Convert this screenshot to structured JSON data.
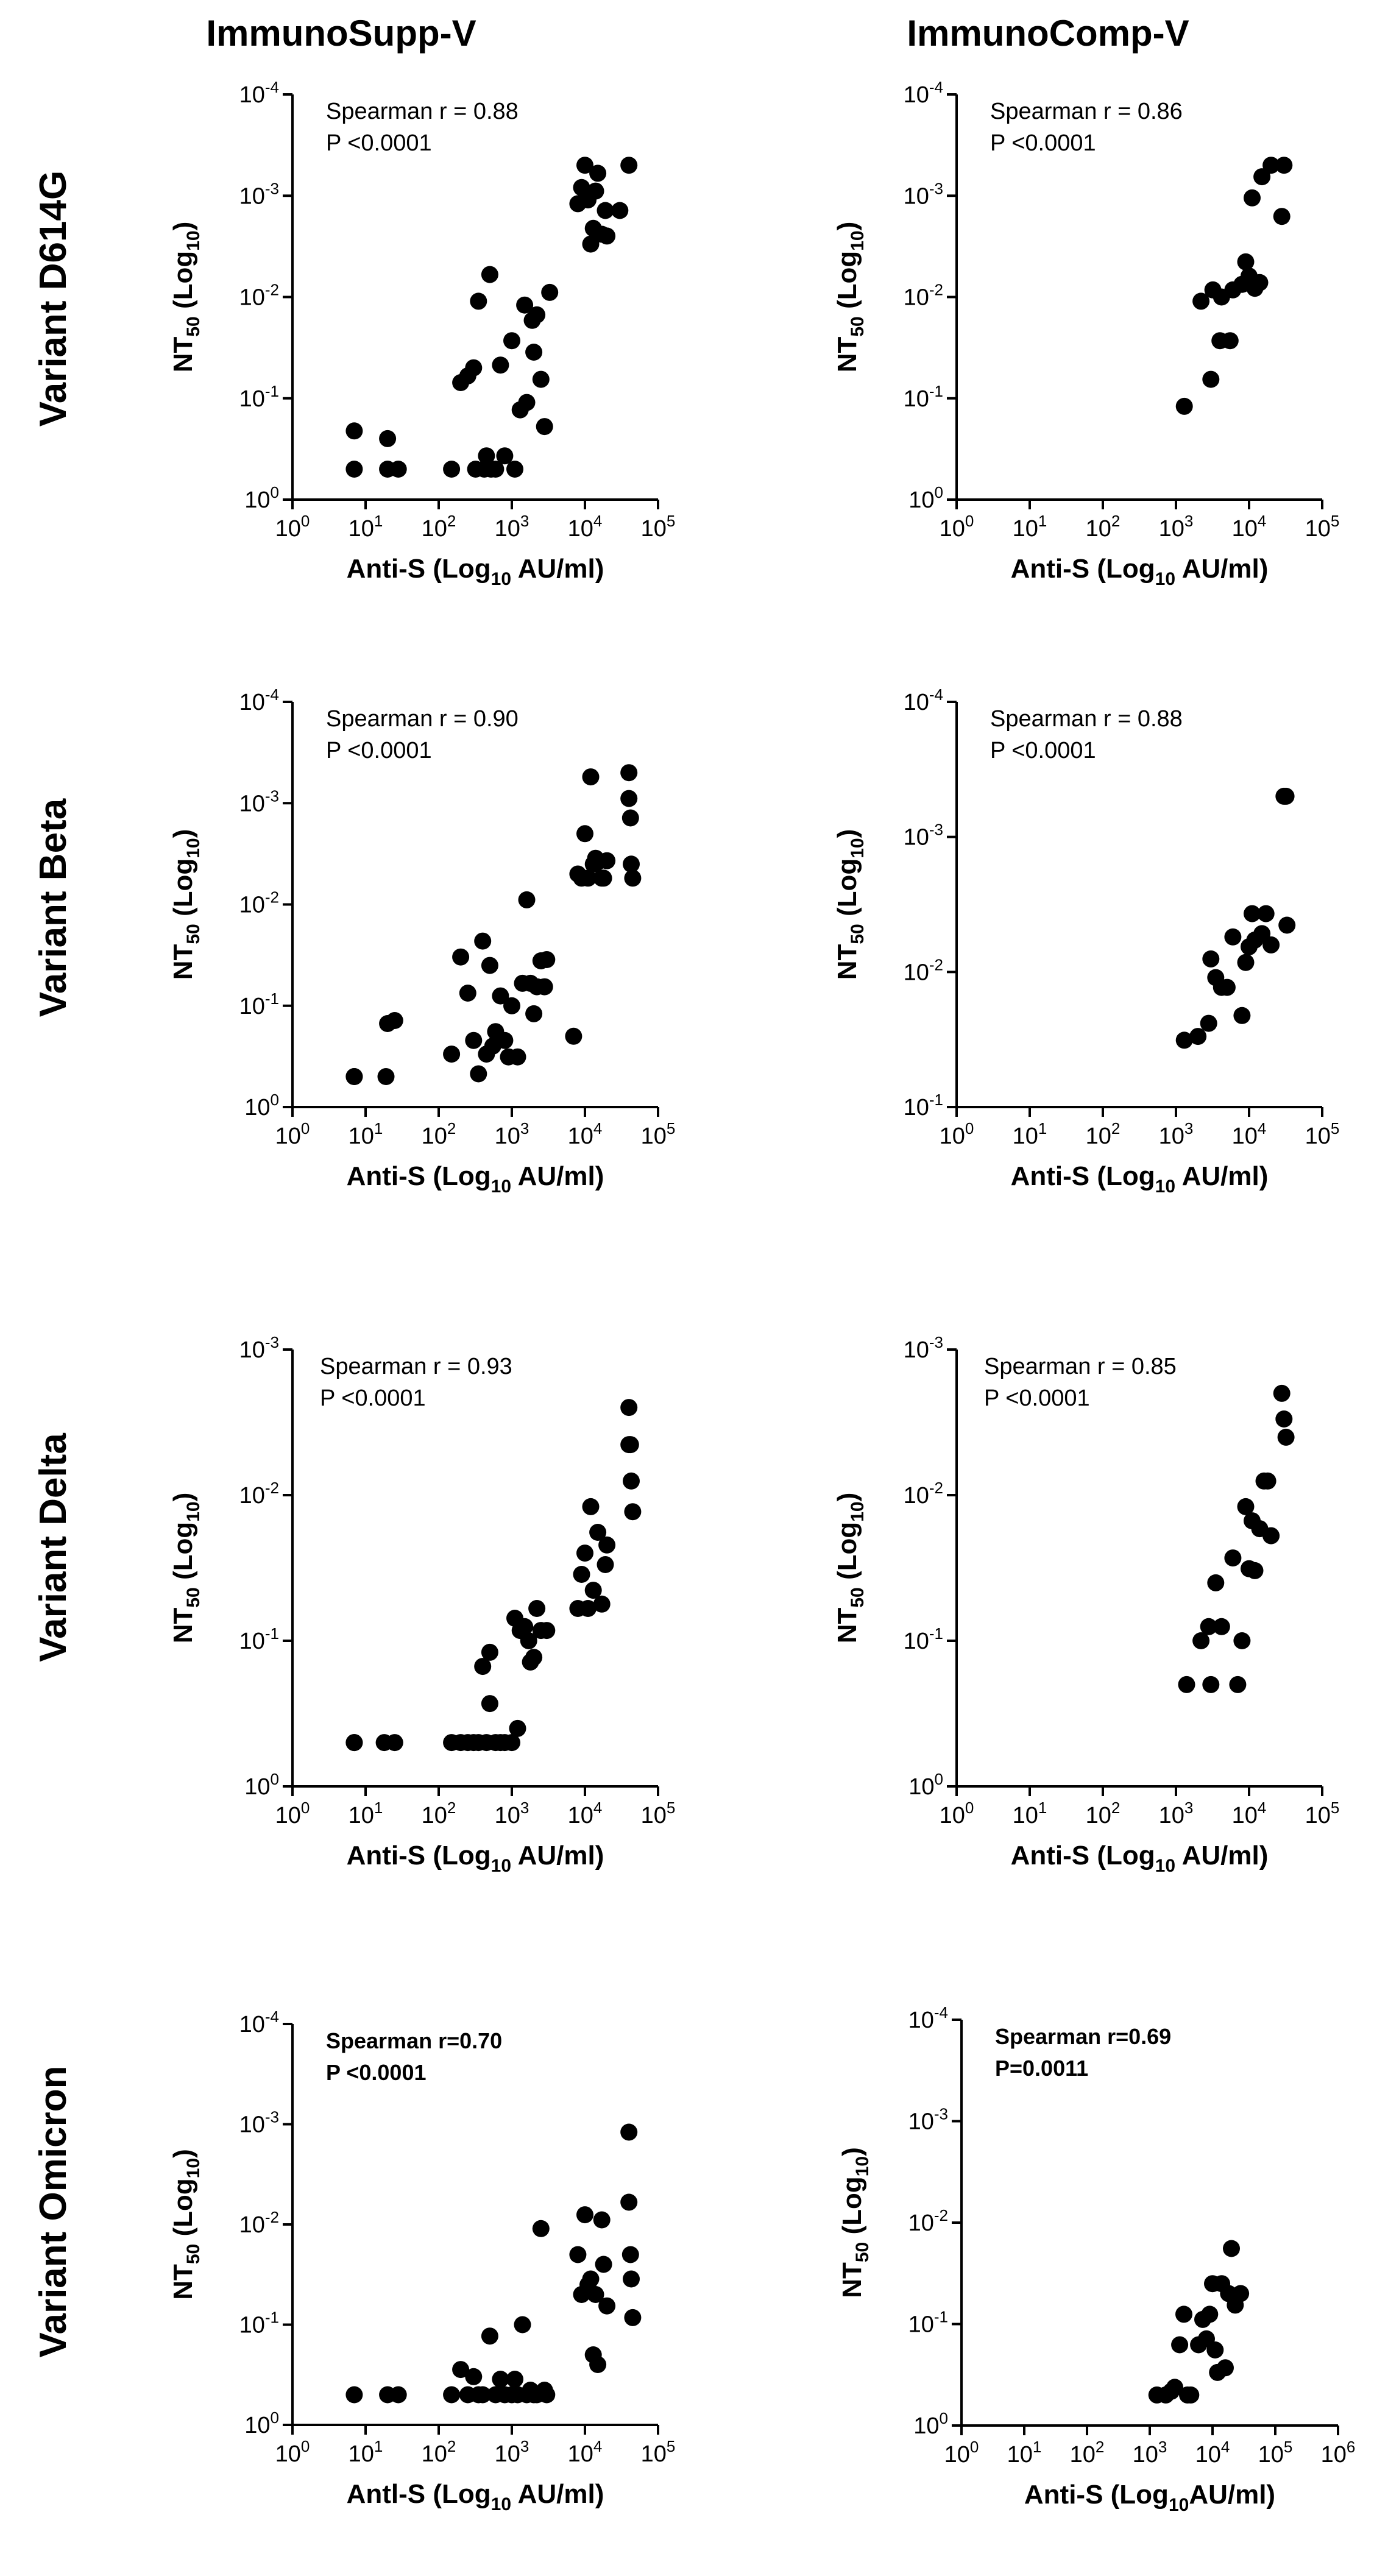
{
  "column_titles": [
    "ImmunoSupp-V",
    "ImmunoComp-V"
  ],
  "row_titles": [
    "Variant D614G",
    "Variant Beta",
    "Variant Delta",
    "Variant Omicron"
  ],
  "chart_data": [
    {
      "type": "scatter",
      "id": "d614g-supp",
      "annotation": [
        "Spearman r = 0.88",
        "P <0.0001"
      ],
      "xlabel": "Anti-S (Log10 AU/ml)",
      "ylabel": "NT50 (Log10)",
      "x_scale": "log",
      "y_scale": "log",
      "y_inverted": true,
      "x_ticks": [
        "10^0",
        "10^1",
        "10^2",
        "10^3",
        "10^4",
        "10^5"
      ],
      "y_ticks": [
        "10^0",
        "10^-1",
        "10^-2",
        "10^-3",
        "10^-4"
      ],
      "points": [
        [
          7,
          0.5
        ],
        [
          7,
          0.21
        ],
        [
          20,
          0.5
        ],
        [
          20,
          0.25
        ],
        [
          28,
          0.5
        ],
        [
          150,
          0.5
        ],
        [
          200,
          0.07
        ],
        [
          250,
          0.06
        ],
        [
          300,
          0.05
        ],
        [
          320,
          0.5
        ],
        [
          350,
          0.011
        ],
        [
          420,
          0.5
        ],
        [
          450,
          0.37
        ],
        [
          500,
          0.006
        ],
        [
          520,
          0.5
        ],
        [
          600,
          0.5
        ],
        [
          700,
          0.047
        ],
        [
          800,
          0.37
        ],
        [
          1000,
          0.027
        ],
        [
          1100,
          0.5
        ],
        [
          1300,
          0.13
        ],
        [
          1500,
          0.012
        ],
        [
          1600,
          0.11
        ],
        [
          1900,
          0.017
        ],
        [
          2000,
          0.035
        ],
        [
          2200,
          0.015
        ],
        [
          2500,
          0.065
        ],
        [
          2800,
          0.19
        ],
        [
          3300,
          0.009
        ],
        [
          8000,
          0.0012
        ],
        [
          9000,
          0.00083
        ],
        [
          10000,
          0.0005
        ],
        [
          11000,
          0.0011
        ],
        [
          12000,
          0.003
        ],
        [
          13000,
          0.0021
        ],
        [
          14000,
          0.0009
        ],
        [
          15000,
          0.0006
        ],
        [
          17000,
          0.0024
        ],
        [
          19000,
          0.0014
        ],
        [
          20000,
          0.0025
        ],
        [
          30000,
          0.0014
        ],
        [
          40000,
          0.0005
        ]
      ]
    },
    {
      "type": "scatter",
      "id": "d614g-comp",
      "annotation": [
        "Spearman r = 0.86",
        "P <0.0001"
      ],
      "xlabel": "Anti-S (Log10 AU/ml)",
      "ylabel": "NT50 (Log10)",
      "x_scale": "log",
      "y_scale": "log",
      "y_inverted": true,
      "x_ticks": [
        "10^0",
        "10^1",
        "10^2",
        "10^3",
        "10^4",
        "10^5"
      ],
      "y_ticks": [
        "10^0",
        "10^-1",
        "10^-2",
        "10^-3",
        "10^-4"
      ],
      "points": [
        [
          1300,
          0.12
        ],
        [
          2200,
          0.011
        ],
        [
          3000,
          0.065
        ],
        [
          3200,
          0.0085
        ],
        [
          4000,
          0.027
        ],
        [
          4200,
          0.01
        ],
        [
          5500,
          0.027
        ],
        [
          6000,
          0.0085
        ],
        [
          8000,
          0.0075
        ],
        [
          9000,
          0.0045
        ],
        [
          10000,
          0.0062
        ],
        [
          11000,
          0.00105
        ],
        [
          12000,
          0.0082
        ],
        [
          14000,
          0.0072
        ],
        [
          15000,
          0.00065
        ],
        [
          20000,
          0.0005
        ],
        [
          28000,
          0.0016
        ],
        [
          30000,
          0.0005
        ]
      ]
    },
    {
      "type": "scatter",
      "id": "beta-supp",
      "annotation": [
        "Spearman r = 0.90",
        "P <0.0001"
      ],
      "xlabel": "Anti-S (Log10 AU/ml)",
      "ylabel": "NT50 (Log10)",
      "x_scale": "log",
      "y_scale": "log",
      "y_inverted": true,
      "x_ticks": [
        "10^0",
        "10^1",
        "10^2",
        "10^3",
        "10^4",
        "10^5"
      ],
      "y_ticks": [
        "10^0",
        "10^-1",
        "10^-2",
        "10^-3",
        "10^-4"
      ],
      "points": [
        [
          7,
          0.5
        ],
        [
          7,
          0.5
        ],
        [
          19,
          0.5
        ],
        [
          20,
          0.15
        ],
        [
          25,
          0.14
        ],
        [
          150,
          0.3
        ],
        [
          200,
          0.033
        ],
        [
          250,
          0.075
        ],
        [
          300,
          0.22
        ],
        [
          350,
          0.47
        ],
        [
          400,
          0.023
        ],
        [
          450,
          0.3
        ],
        [
          500,
          0.04
        ],
        [
          550,
          0.25
        ],
        [
          600,
          0.18
        ],
        [
          700,
          0.08
        ],
        [
          800,
          0.22
        ],
        [
          900,
          0.32
        ],
        [
          1000,
          0.1
        ],
        [
          1200,
          0.32
        ],
        [
          1400,
          0.06
        ],
        [
          1600,
          0.009
        ],
        [
          1800,
          0.06
        ],
        [
          2000,
          0.12
        ],
        [
          2200,
          0.065
        ],
        [
          2500,
          0.036
        ],
        [
          2800,
          0.065
        ],
        [
          3000,
          0.035
        ],
        [
          7000,
          0.2
        ],
        [
          8000,
          0.005
        ],
        [
          9000,
          0.0055
        ],
        [
          10000,
          0.002
        ],
        [
          11000,
          0.0055
        ],
        [
          12000,
          0.00055
        ],
        [
          13000,
          0.004
        ],
        [
          14000,
          0.0035
        ],
        [
          15000,
          0.0038
        ],
        [
          17000,
          0.0055
        ],
        [
          18000,
          0.0055
        ],
        [
          20000,
          0.0037
        ],
        [
          40000,
          0.0005
        ],
        [
          40000,
          0.0009
        ],
        [
          42000,
          0.0014
        ],
        [
          43000,
          0.004
        ],
        [
          45000,
          0.0055
        ]
      ]
    },
    {
      "type": "scatter",
      "id": "beta-comp",
      "annotation": [
        "Spearman r = 0.88",
        "P <0.0001"
      ],
      "xlabel": "Anti-S (Log10 AU/ml)",
      "ylabel": "NT50 (Log10)",
      "x_scale": "log",
      "y_scale": "log",
      "y_inverted": true,
      "x_ticks": [
        "10^0",
        "10^1",
        "10^2",
        "10^3",
        "10^4",
        "10^5"
      ],
      "y_ticks": [
        "10^-1",
        "10^-2",
        "10^-3",
        "10^-4"
      ],
      "points": [
        [
          1300,
          0.032
        ],
        [
          2000,
          0.03
        ],
        [
          2800,
          0.024
        ],
        [
          3000,
          0.008
        ],
        [
          3500,
          0.011
        ],
        [
          4200,
          0.013
        ],
        [
          5000,
          0.013
        ],
        [
          6000,
          0.0055
        ],
        [
          8000,
          0.021
        ],
        [
          9000,
          0.0085
        ],
        [
          10000,
          0.0065
        ],
        [
          11000,
          0.0037
        ],
        [
          12000,
          0.0058
        ],
        [
          15000,
          0.0052
        ],
        [
          17000,
          0.0037
        ],
        [
          20000,
          0.0063
        ],
        [
          30000,
          0.0005
        ],
        [
          32000,
          0.0005
        ],
        [
          33000,
          0.0045
        ]
      ]
    },
    {
      "type": "scatter",
      "id": "delta-supp",
      "annotation": [
        "Spearman r = 0.93",
        "P <0.0001"
      ],
      "xlabel": "Anti-S (Log10 AU/ml)",
      "ylabel": "NT50 (Log10)",
      "x_scale": "log",
      "y_scale": "log",
      "y_inverted": true,
      "x_ticks": [
        "10^0",
        "10^1",
        "10^2",
        "10^3",
        "10^4",
        "10^5"
      ],
      "y_ticks": [
        "10^0",
        "10^-1",
        "10^-2",
        "10^-3"
      ],
      "points": [
        [
          7,
          0.5
        ],
        [
          7,
          0.5
        ],
        [
          18,
          0.5
        ],
        [
          25,
          0.5
        ],
        [
          150,
          0.5
        ],
        [
          200,
          0.5
        ],
        [
          250,
          0.5
        ],
        [
          300,
          0.5
        ],
        [
          350,
          0.5
        ],
        [
          400,
          0.15
        ],
        [
          450,
          0.5
        ],
        [
          500,
          0.12
        ],
        [
          500,
          0.27
        ],
        [
          600,
          0.5
        ],
        [
          700,
          0.5
        ],
        [
          800,
          0.5
        ],
        [
          1000,
          0.5
        ],
        [
          1100,
          0.07
        ],
        [
          1200,
          0.4
        ],
        [
          1300,
          0.085
        ],
        [
          1500,
          0.08
        ],
        [
          1700,
          0.1
        ],
        [
          1800,
          0.14
        ],
        [
          2000,
          0.13
        ],
        [
          2200,
          0.06
        ],
        [
          2500,
          0.085
        ],
        [
          3000,
          0.085
        ],
        [
          8000,
          0.06
        ],
        [
          9000,
          0.035
        ],
        [
          10000,
          0.025
        ],
        [
          11000,
          0.06
        ],
        [
          12000,
          0.012
        ],
        [
          13000,
          0.045
        ],
        [
          15000,
          0.018
        ],
        [
          17000,
          0.056
        ],
        [
          19000,
          0.03
        ],
        [
          20000,
          0.022
        ],
        [
          40000,
          0.0025
        ],
        [
          40000,
          0.0045
        ],
        [
          42000,
          0.0045
        ],
        [
          43000,
          0.008
        ],
        [
          45000,
          0.013
        ]
      ]
    },
    {
      "type": "scatter",
      "id": "delta-comp",
      "annotation": [
        "Spearman r = 0.85",
        "P <0.0001"
      ],
      "xlabel": "Anti-S (Log10 AU/ml)",
      "ylabel": "NT50 (Log10)",
      "x_scale": "log",
      "y_scale": "log",
      "y_inverted": true,
      "x_ticks": [
        "10^0",
        "10^1",
        "10^2",
        "10^3",
        "10^4",
        "10^5"
      ],
      "y_ticks": [
        "10^0",
        "10^-1",
        "10^-2",
        "10^-3"
      ],
      "points": [
        [
          1400,
          0.2
        ],
        [
          2200,
          0.1
        ],
        [
          2800,
          0.08
        ],
        [
          3000,
          0.2
        ],
        [
          3500,
          0.04
        ],
        [
          4200,
          0.08
        ],
        [
          6000,
          0.027
        ],
        [
          7000,
          0.2
        ],
        [
          8000,
          0.1
        ],
        [
          9000,
          0.012
        ],
        [
          10000,
          0.032
        ],
        [
          11000,
          0.015
        ],
        [
          12000,
          0.033
        ],
        [
          14000,
          0.017
        ],
        [
          16000,
          0.008
        ],
        [
          18000,
          0.008
        ],
        [
          20000,
          0.019
        ],
        [
          28000,
          0.002
        ],
        [
          30000,
          0.003
        ],
        [
          32000,
          0.004
        ]
      ]
    },
    {
      "type": "scatter",
      "id": "omicron-supp",
      "annotation": [
        "Spearman r=0.70",
        "P <0.0001"
      ],
      "xlabel": "Antl-S (Log10 AU/ml)",
      "ylabel": "NT50 (Log10)",
      "x_scale": "log",
      "y_scale": "log",
      "y_inverted": true,
      "x_ticks": [
        "10^0",
        "10^1",
        "10^2",
        "10^3",
        "10^4",
        "10^5"
      ],
      "y_ticks": [
        "10^0",
        "10^-1",
        "10^-2",
        "10^-3",
        "10^-4"
      ],
      "points": [
        [
          7,
          0.5
        ],
        [
          20,
          0.5
        ],
        [
          28,
          0.5
        ],
        [
          150,
          0.5
        ],
        [
          200,
          0.28
        ],
        [
          250,
          0.5
        ],
        [
          300,
          0.33
        ],
        [
          350,
          0.5
        ],
        [
          400,
          0.5
        ],
        [
          500,
          0.13
        ],
        [
          600,
          0.5
        ],
        [
          700,
          0.35
        ],
        [
          800,
          0.5
        ],
        [
          1000,
          0.5
        ],
        [
          1100,
          0.35
        ],
        [
          1200,
          0.5
        ],
        [
          1400,
          0.1
        ],
        [
          1600,
          0.5
        ],
        [
          1800,
          0.45
        ],
        [
          2000,
          0.5
        ],
        [
          2200,
          0.5
        ],
        [
          2500,
          0.011
        ],
        [
          2800,
          0.45
        ],
        [
          3000,
          0.5
        ],
        [
          8000,
          0.02
        ],
        [
          9000,
          0.05
        ],
        [
          10000,
          0.008
        ],
        [
          11000,
          0.04
        ],
        [
          12000,
          0.035
        ],
        [
          13000,
          0.2
        ],
        [
          14000,
          0.05
        ],
        [
          15000,
          0.25
        ],
        [
          17000,
          0.009
        ],
        [
          18000,
          0.025
        ],
        [
          20000,
          0.065
        ],
        [
          40000,
          0.0012
        ],
        [
          40000,
          0.006
        ],
        [
          42000,
          0.02
        ],
        [
          43000,
          0.035
        ],
        [
          45000,
          0.085
        ]
      ]
    },
    {
      "type": "scatter",
      "id": "omicron-comp",
      "annotation": [
        "Spearman r=0.69",
        "P=0.0011"
      ],
      "xlabel": "Anti-S (Log10AU/ml)",
      "ylabel": "NT50 (Log10)",
      "x_scale": "log",
      "y_scale": "log",
      "y_inverted": true,
      "x_ticks": [
        "10^0",
        "10^1",
        "10^2",
        "10^3",
        "10^4",
        "10^5",
        "10^6"
      ],
      "y_ticks": [
        "10^0",
        "10^-1",
        "10^-2",
        "10^-3",
        "10^-4"
      ],
      "points": [
        [
          1300,
          0.5
        ],
        [
          1800,
          0.5
        ],
        [
          2200,
          0.46
        ],
        [
          2500,
          0.42
        ],
        [
          3000,
          0.16
        ],
        [
          3500,
          0.08
        ],
        [
          4000,
          0.5
        ],
        [
          4500,
          0.5
        ],
        [
          6000,
          0.16
        ],
        [
          7000,
          0.09
        ],
        [
          8000,
          0.14
        ],
        [
          9000,
          0.08
        ],
        [
          10000,
          0.04
        ],
        [
          11000,
          0.18
        ],
        [
          12000,
          0.3
        ],
        [
          14000,
          0.04
        ],
        [
          16000,
          0.27
        ],
        [
          18000,
          0.05
        ],
        [
          20000,
          0.018
        ],
        [
          23000,
          0.065
        ],
        [
          28000,
          0.05
        ]
      ]
    }
  ]
}
